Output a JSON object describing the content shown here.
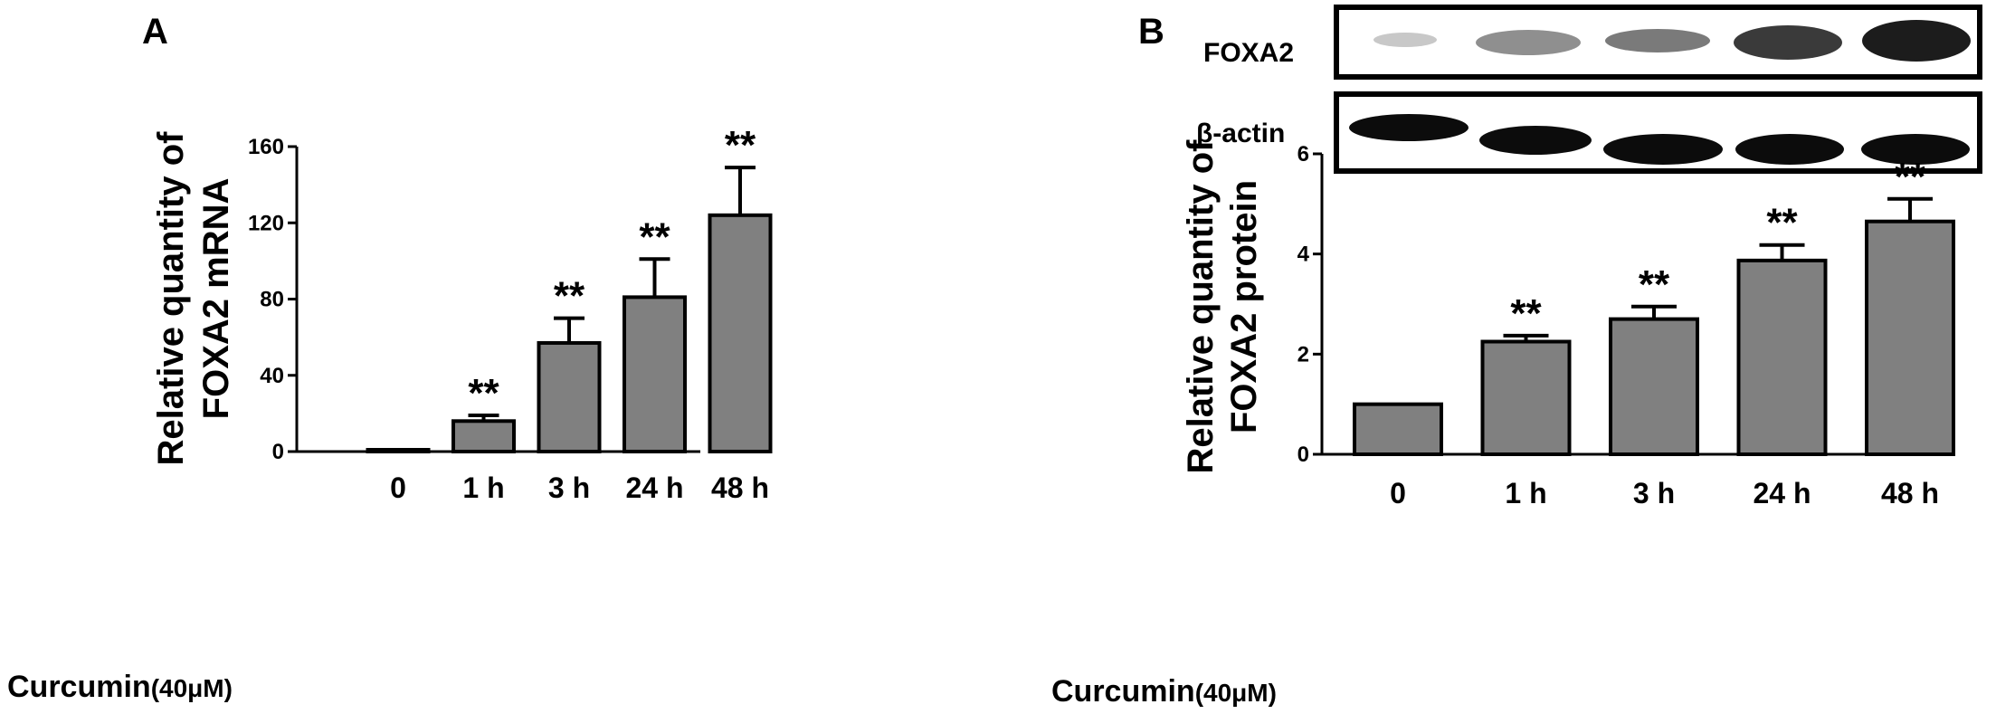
{
  "figure": {
    "panel_a_letter": "A",
    "panel_b_letter": "B",
    "treatment_label": "Curcumin",
    "treatment_dose": "(40μM)",
    "blot_labels": [
      "FOXA2",
      "β-actin"
    ]
  },
  "colors": {
    "bar_fill": "#808080",
    "bar_stroke": "#000000",
    "background": "#ffffff"
  },
  "chart_data": [
    {
      "type": "bar",
      "panel": "A",
      "categories": [
        "0",
        "1 h",
        "3 h",
        "24 h",
        "48 h"
      ],
      "values": [
        0.5,
        16,
        57,
        81,
        124
      ],
      "error_upper": [
        0.5,
        19,
        70,
        101,
        149
      ],
      "significance": [
        "",
        "**",
        "**",
        "**",
        "**"
      ],
      "ylabel_lines": [
        "Relative quantity of",
        "FOXA2 mRNA"
      ],
      "ylim": [
        0,
        160
      ],
      "yticks": [
        0,
        40,
        80,
        120,
        160
      ],
      "grid": false
    },
    {
      "type": "bar",
      "panel": "B",
      "categories": [
        "0",
        "1 h",
        "3 h",
        "24 h",
        "48 h"
      ],
      "values": [
        1.0,
        2.25,
        2.7,
        3.87,
        4.65
      ],
      "error_upper": [
        1.0,
        2.37,
        2.95,
        4.18,
        5.1
      ],
      "significance": [
        "",
        "**",
        "**",
        "**",
        "**"
      ],
      "ylabel_lines": [
        "Relative quantity of",
        "FOXA2 protein"
      ],
      "ylim": [
        0,
        6
      ],
      "yticks": [
        0,
        2,
        4,
        6
      ],
      "grid": false
    }
  ]
}
